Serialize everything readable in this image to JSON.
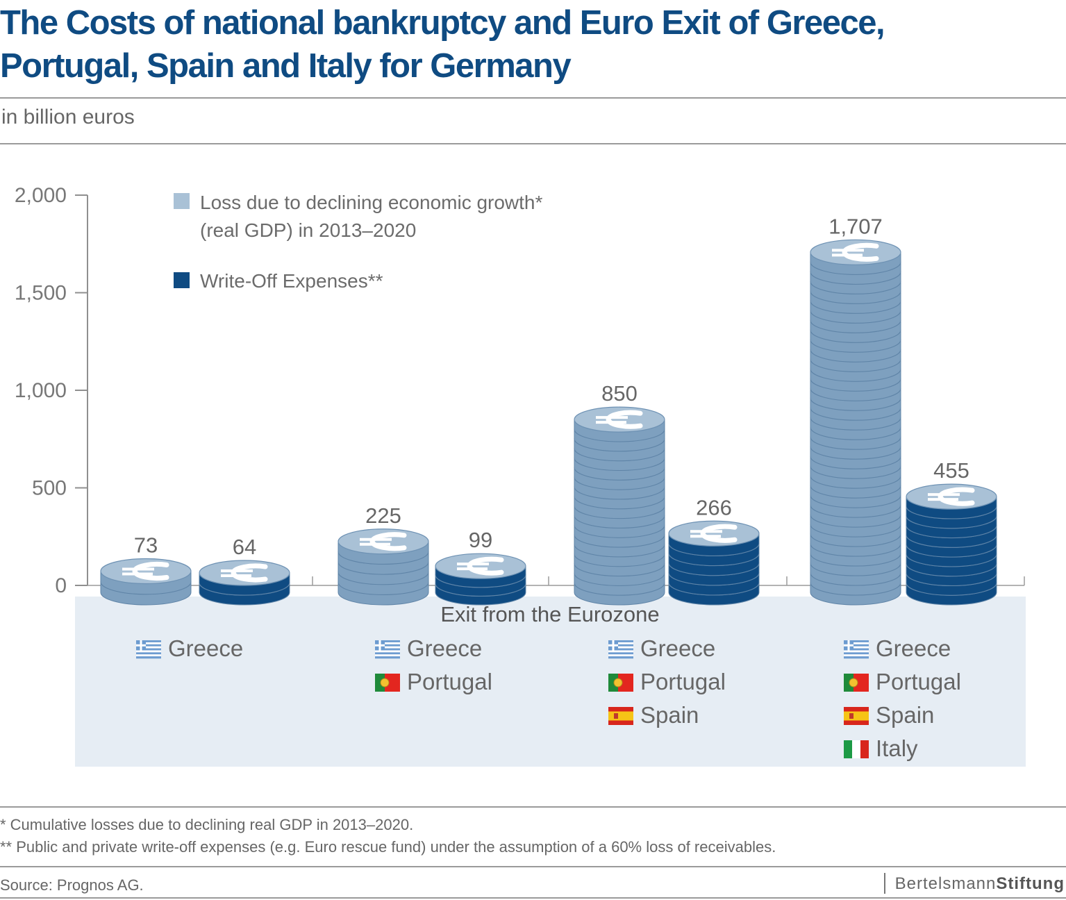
{
  "header": {
    "title": "The Costs of national bankruptcy and Euro Exit of Greece, Portugal, Spain and Italy for Germany",
    "subtitle": "in billion euros"
  },
  "colors": {
    "title": "#0f4b82",
    "light_coin": "#a9c1d6",
    "light_coin_edge": "#7ea0bf",
    "dark_coin": "#0f4b82",
    "panel": "#e6edf4"
  },
  "chart_data": {
    "type": "bar",
    "ylim": [
      0,
      2000
    ],
    "yticks": [
      0,
      500,
      1000,
      1500,
      2000
    ],
    "ytick_labels": [
      "0",
      "500",
      "1,000",
      "1,500",
      "2,000"
    ],
    "categories": [
      "Greece",
      "Greece, Portugal",
      "Greece, Portugal, Spain",
      "Greece, Portugal, Spain, Italy"
    ],
    "series": [
      {
        "name": "Loss due to declining economic growth* (real GDP) in 2013–2020",
        "values": [
          73,
          225,
          850,
          1707
        ],
        "labels": [
          "73",
          "225",
          "850",
          "1,707"
        ]
      },
      {
        "name": "Write-Off Expenses**",
        "values": [
          64,
          99,
          266,
          455
        ],
        "labels": [
          "64",
          "99",
          "266",
          "455"
        ]
      }
    ],
    "legend": [
      {
        "line1": "Loss due to declining economic growth*",
        "line2": "(real GDP) in 2013–2020"
      },
      {
        "line1": "Write-Off Expenses**"
      }
    ],
    "xlabel": "Exit from the Eurozone",
    "groups": [
      [
        "Greece"
      ],
      [
        "Greece",
        "Portugal"
      ],
      [
        "Greece",
        "Portugal",
        "Spain"
      ],
      [
        "Greece",
        "Portugal",
        "Spain",
        "Italy"
      ]
    ]
  },
  "footnotes": {
    "note1": "* Cumulative losses due to declining real GDP in 2013–2020.",
    "note2": "** Public and private write-off expenses (e.g. Euro rescue fund) under the assumption of a 60% loss of receivables."
  },
  "footer": {
    "source": "Source: Prognos AG.",
    "brand_first": "Bertelsmann",
    "brand_second": "Stiftung"
  }
}
